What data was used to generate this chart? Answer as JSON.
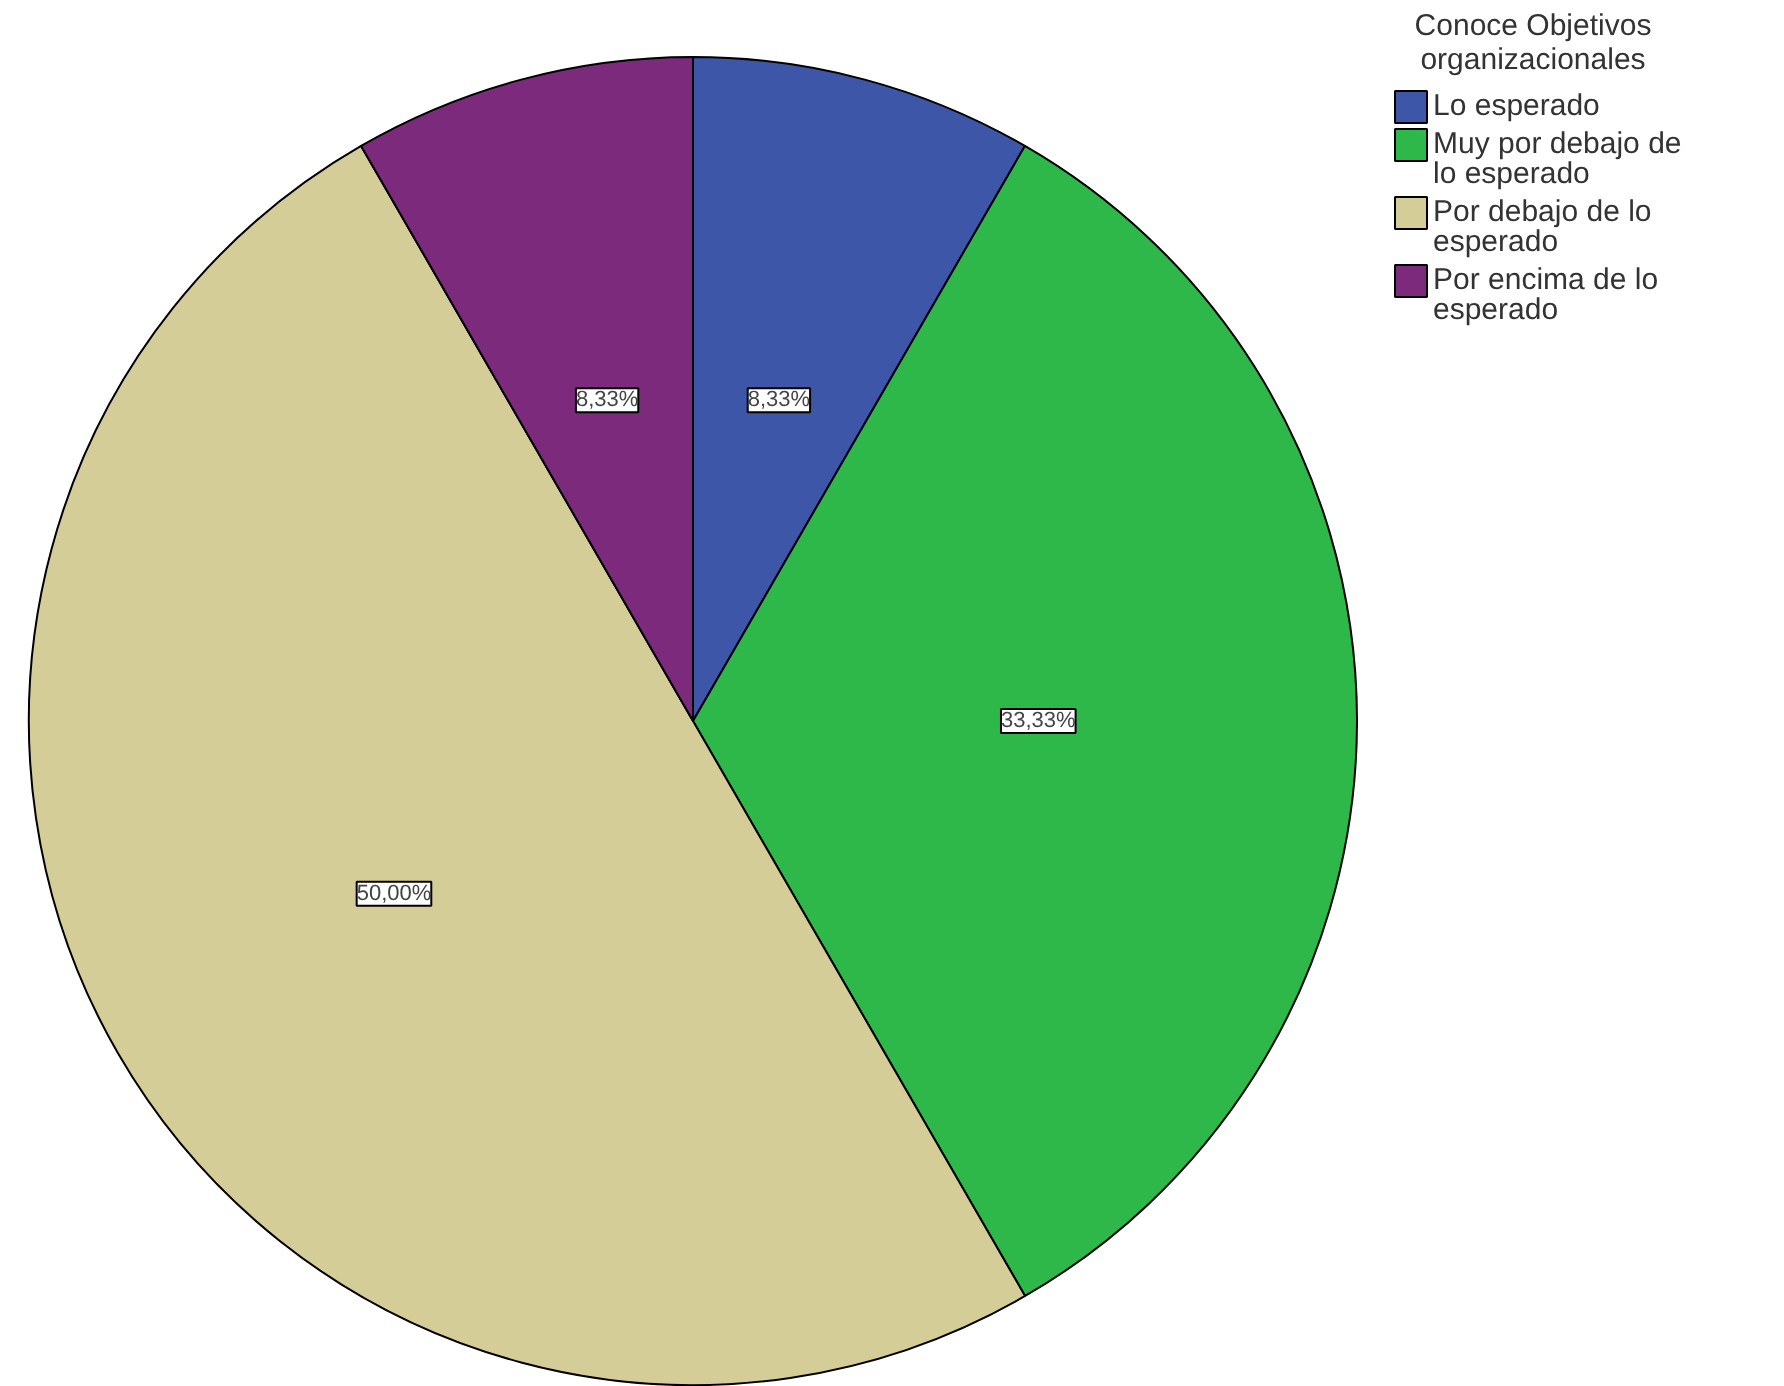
{
  "chart_data": {
    "type": "pie",
    "legend_title": "Conoce Objetivos organizacionales",
    "categories": [
      "Lo esperado",
      "Muy por debajo de lo esperado",
      "Por debajo de lo esperado",
      "Por encima de lo esperado"
    ],
    "values": [
      8.33,
      33.33,
      50.0,
      8.33
    ],
    "colors": [
      "#3d56a8",
      "#2fb84a",
      "#d5cd97",
      "#7b2a7c"
    ],
    "value_labels": [
      "8,33%",
      "33,33%",
      "50,00%",
      "8,33%"
    ],
    "legend": "top right"
  }
}
